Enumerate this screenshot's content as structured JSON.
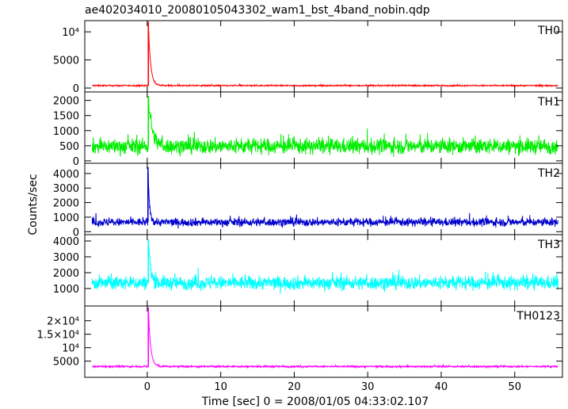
{
  "chart_data": {
    "type": "line",
    "title": "ae402034010_20080105043302_wam1_bst_4band_nobin.qdp",
    "xlabel": "Time [sec] 0 = 2008/01/05 04:33:02.107",
    "ylabel": "Counts/sec",
    "xlim": [
      -8.5,
      56.5
    ],
    "x_ticks": [
      {
        "v": 0,
        "label": "0"
      },
      {
        "v": 10,
        "label": "10"
      },
      {
        "v": 20,
        "label": "20"
      },
      {
        "v": 30,
        "label": "30"
      },
      {
        "v": 40,
        "label": "40"
      },
      {
        "v": 50,
        "label": "50"
      }
    ],
    "series": [
      {
        "name": "TH0",
        "color": "#ff0000",
        "ylim": [
          -700,
          12000
        ],
        "ticks": [
          {
            "v": 0,
            "label": "0"
          },
          {
            "v": 5000,
            "label": "5000"
          },
          {
            "v": 10000,
            "label": "10⁴"
          }
        ],
        "baseline": 430,
        "noise": 140,
        "burst_peak": 11800,
        "burst_time": 0.15,
        "burst_decay": 0.3
      },
      {
        "name": "TH1",
        "color": "#00ee00",
        "ylim": [
          -80,
          2280
        ],
        "ticks": [
          {
            "v": 0,
            "label": "0"
          },
          {
            "v": 500,
            "label": "500"
          },
          {
            "v": 1000,
            "label": "1000"
          },
          {
            "v": 1500,
            "label": "1500"
          },
          {
            "v": 2000,
            "label": "2000"
          }
        ],
        "baseline": 480,
        "noise": 330,
        "burst_peak": 2150,
        "burst_time": 0.15,
        "burst_decay": 0.5
      },
      {
        "name": "TH2",
        "color": "#0000cc",
        "ylim": [
          -200,
          4700
        ],
        "ticks": [
          {
            "v": 0,
            "label": "0"
          },
          {
            "v": 1000,
            "label": "1000"
          },
          {
            "v": 2000,
            "label": "2000"
          },
          {
            "v": 3000,
            "label": "3000"
          },
          {
            "v": 4000,
            "label": "4000"
          }
        ],
        "baseline": 650,
        "noise": 360,
        "burst_peak": 4450,
        "burst_time": 0.1,
        "burst_decay": 0.2
      },
      {
        "name": "TH3",
        "color": "#00ffff",
        "ylim": [
          -100,
          4400
        ],
        "ticks": [
          {
            "v": 1000,
            "label": "1000"
          },
          {
            "v": 2000,
            "label": "2000"
          },
          {
            "v": 3000,
            "label": "3000"
          },
          {
            "v": 4000,
            "label": "4000"
          }
        ],
        "baseline": 1350,
        "noise": 560,
        "burst_peak": 4100,
        "burst_time": 0.15,
        "burst_decay": 0.3
      },
      {
        "name": "TH0123",
        "color": "#ff00ff",
        "ylim": [
          -1000,
          25500
        ],
        "ticks": [
          {
            "v": 5000,
            "label": "5000"
          },
          {
            "v": 10000,
            "label": "10⁴"
          },
          {
            "v": 15000,
            "label": "1.5×10⁴"
          },
          {
            "v": 20000,
            "label": "2×10⁴"
          }
        ],
        "baseline": 3000,
        "noise": 420,
        "burst_peak": 25000,
        "burst_time": 0.15,
        "burst_decay": 0.3
      }
    ]
  }
}
